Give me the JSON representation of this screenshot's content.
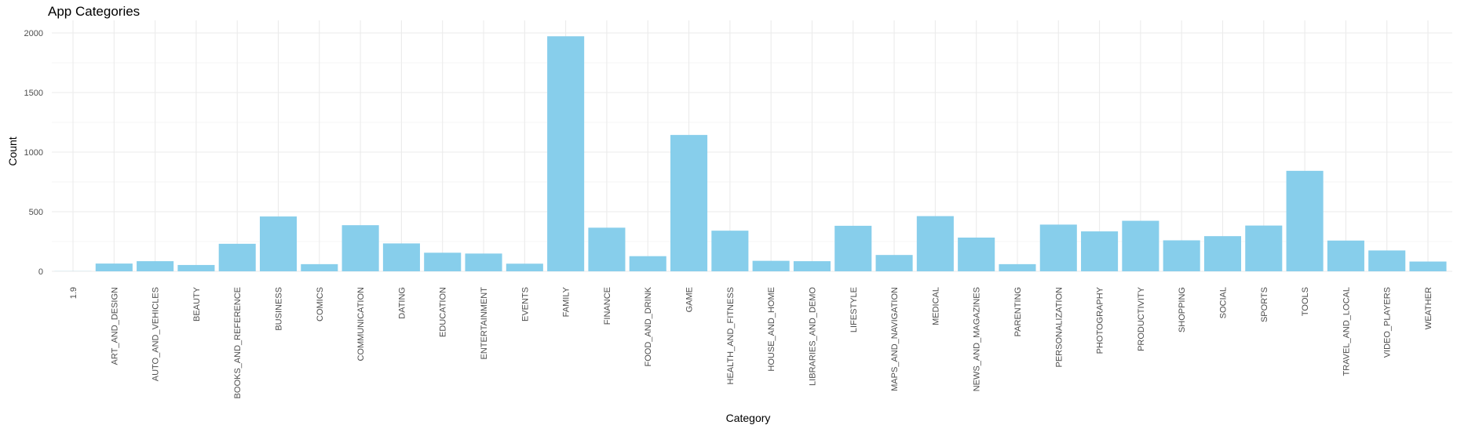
{
  "chart_data": {
    "type": "bar",
    "title": "App Categories",
    "xlabel": "Category",
    "ylabel": "Count",
    "ylim": [
      0,
      2000
    ],
    "yticks": [
      0,
      500,
      1000,
      1500,
      2000
    ],
    "grid": true,
    "bar_color": "#87CEEB",
    "categories": [
      "1.9",
      "ART_AND_DESIGN",
      "AUTO_AND_VEHICLES",
      "BEAUTY",
      "BOOKS_AND_REFERENCE",
      "BUSINESS",
      "COMICS",
      "COMMUNICATION",
      "DATING",
      "EDUCATION",
      "ENTERTAINMENT",
      "EVENTS",
      "FAMILY",
      "FINANCE",
      "FOOD_AND_DRINK",
      "GAME",
      "HEALTH_AND_FITNESS",
      "HOUSE_AND_HOME",
      "LIBRARIES_AND_DEMO",
      "LIFESTYLE",
      "MAPS_AND_NAVIGATION",
      "MEDICAL",
      "NEWS_AND_MAGAZINES",
      "PARENTING",
      "PERSONALIZATION",
      "PHOTOGRAPHY",
      "PRODUCTIVITY",
      "SHOPPING",
      "SOCIAL",
      "SPORTS",
      "TOOLS",
      "TRAVEL_AND_LOCAL",
      "VIDEO_PLAYERS",
      "WEATHER"
    ],
    "values": [
      1,
      65,
      85,
      53,
      231,
      460,
      60,
      387,
      234,
      156,
      149,
      64,
      1972,
      366,
      127,
      1144,
      341,
      88,
      85,
      382,
      137,
      463,
      283,
      60,
      392,
      335,
      424,
      260,
      295,
      384,
      843,
      258,
      175,
      82
    ]
  }
}
